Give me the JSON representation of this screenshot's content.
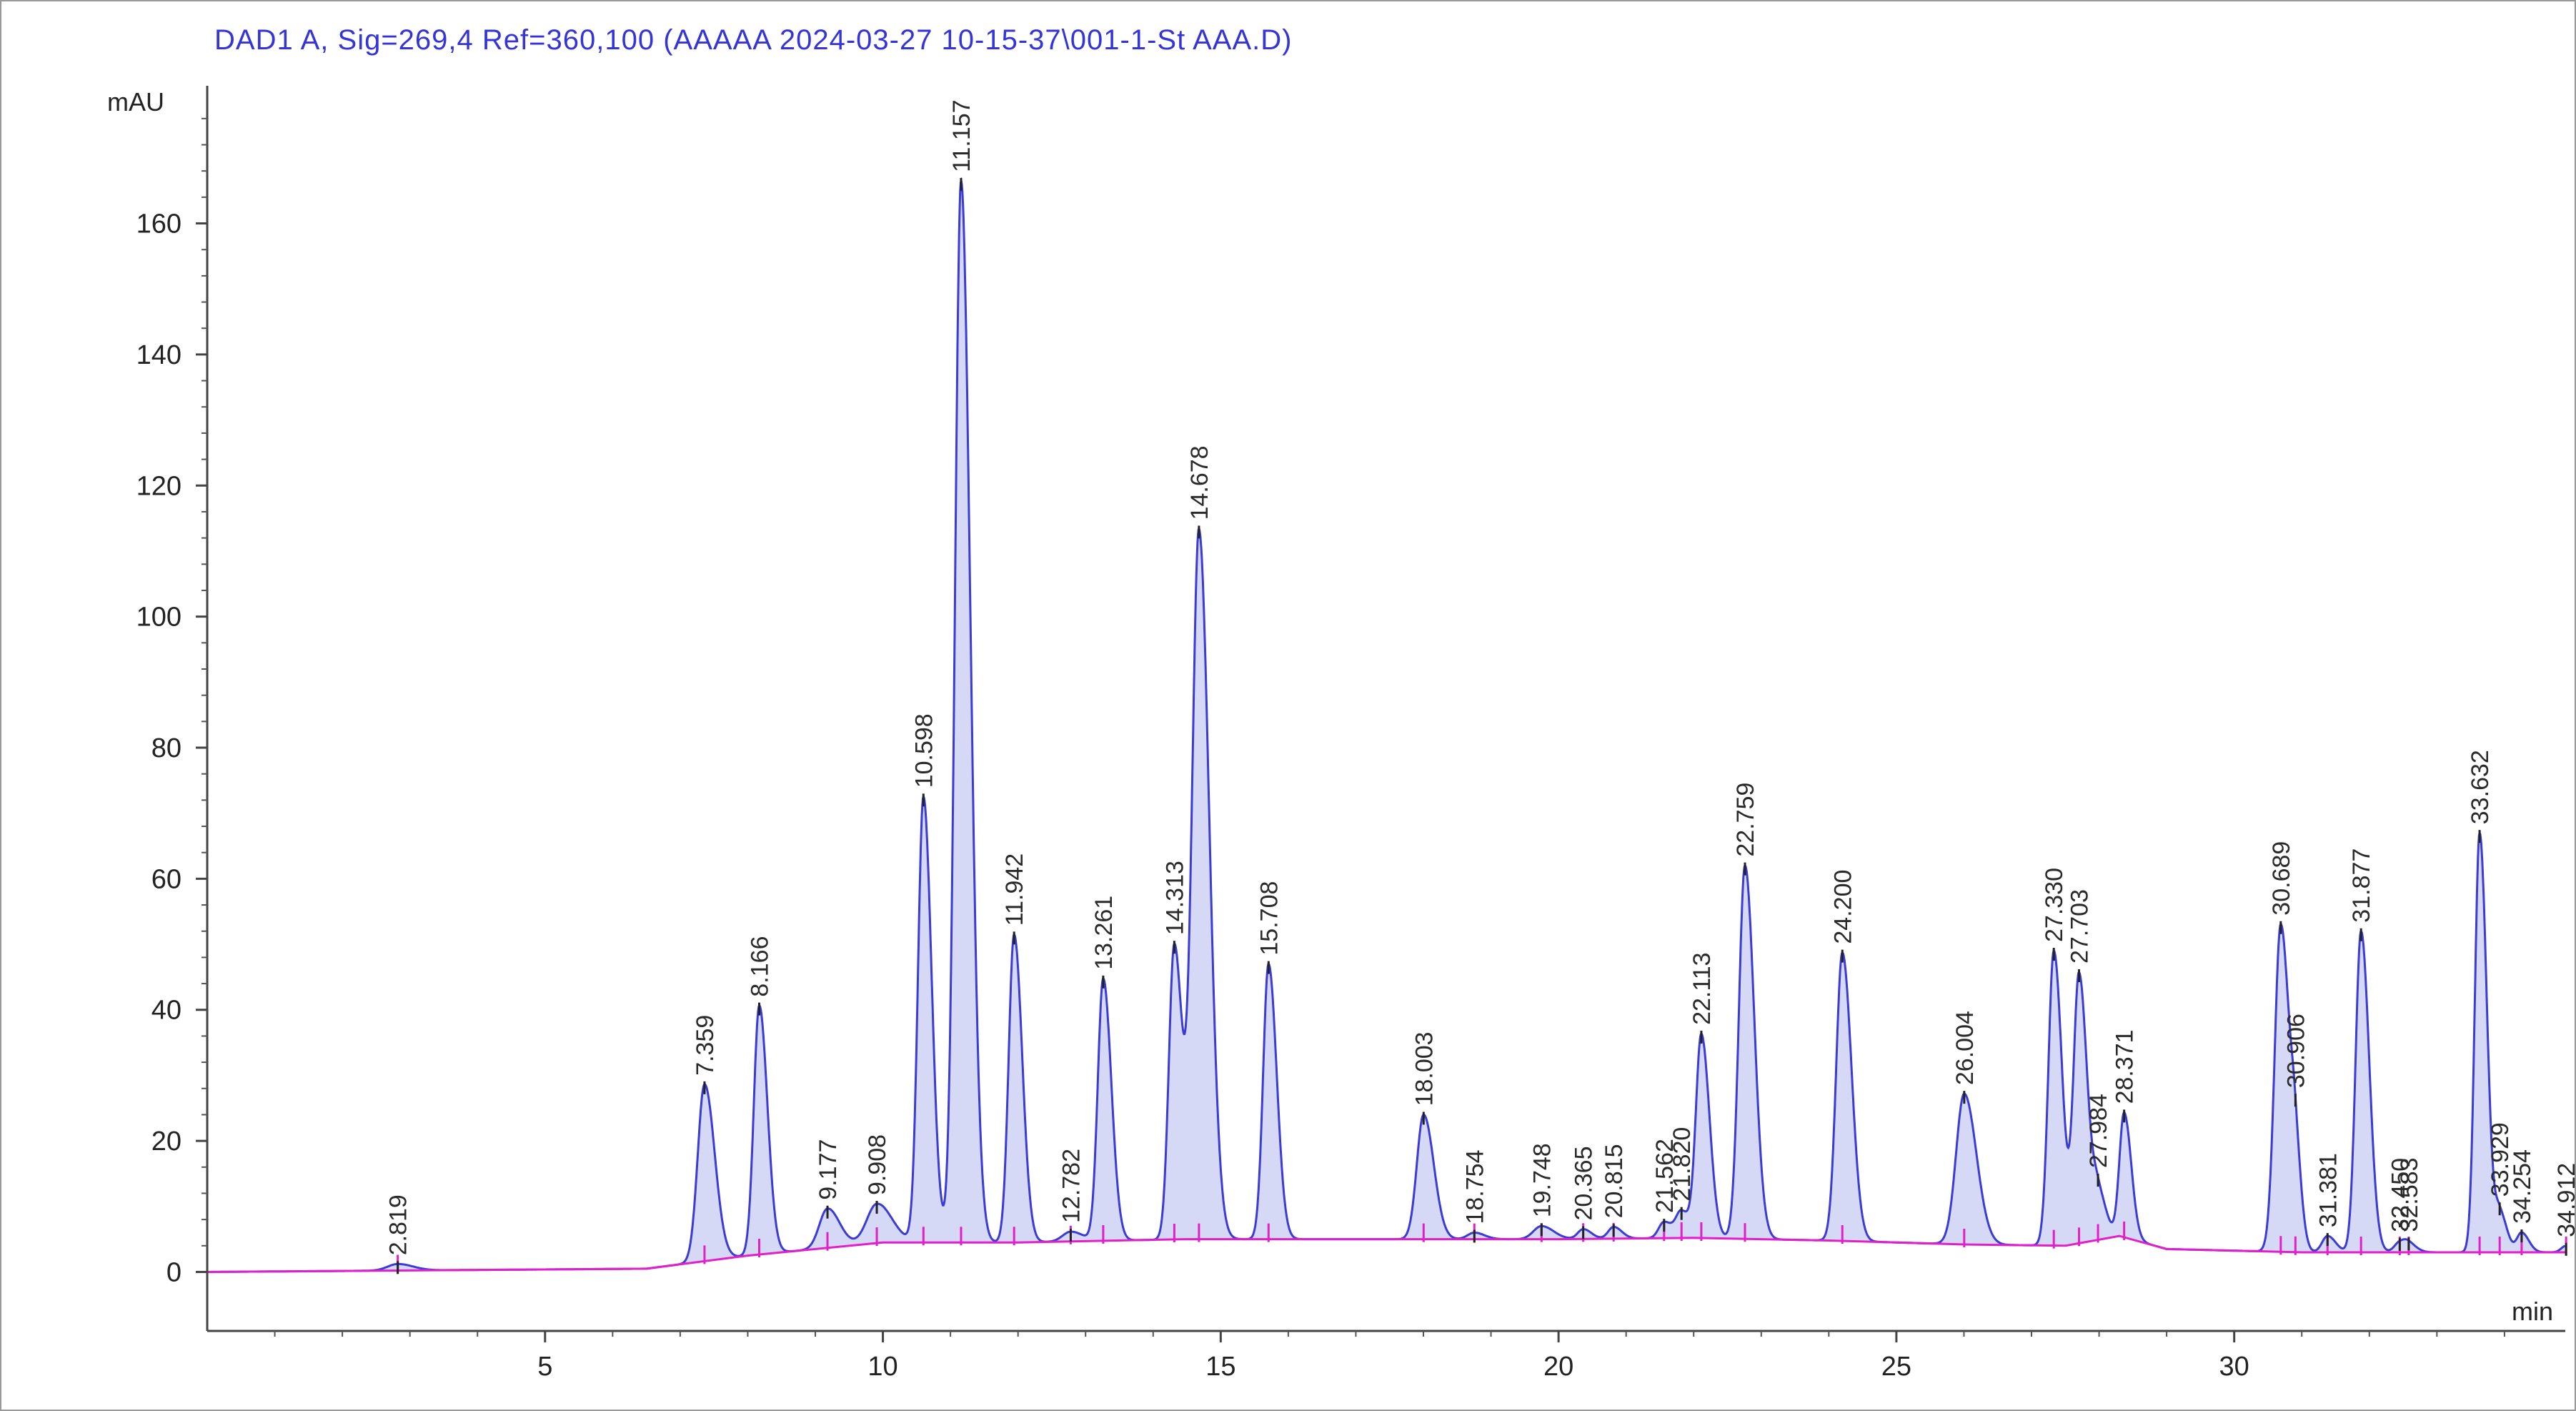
{
  "title": "DAD1 A, Sig=269,4 Ref=360,100 (AAAAA 2024-03-27 10-15-37\\001-1-St AAA.D)",
  "chart_data": {
    "type": "line",
    "ylabel": "mAU",
    "xlabel": "min",
    "xlim": [
      0,
      34.9
    ],
    "ylim": [
      -9,
      181
    ],
    "x_ticks": [
      5,
      10,
      15,
      20,
      25,
      30
    ],
    "y_ticks": [
      0,
      20,
      40,
      60,
      80,
      100,
      120,
      140,
      160
    ],
    "signal_color": "#3b3bd6",
    "fill_color": "#cfd2f4",
    "baseline_color": "#e020c8",
    "peaks": [
      {
        "rt": "2.819",
        "x": 2.82,
        "h": 1.0,
        "w": 0.15
      },
      {
        "rt": "7.359",
        "x": 7.36,
        "h": 27,
        "w": 0.1
      },
      {
        "rt": "8.166",
        "x": 8.17,
        "h": 38,
        "w": 0.08
      },
      {
        "rt": "9.177",
        "x": 9.18,
        "h": 6,
        "w": 0.12
      },
      {
        "rt": "9.908",
        "x": 9.91,
        "h": 6,
        "w": 0.15
      },
      {
        "rt": "10.598",
        "x": 10.6,
        "h": 68,
        "w": 0.08
      },
      {
        "rt": "11.157",
        "x": 11.157,
        "h": 162,
        "w": 0.09
      },
      {
        "rt": "11.942",
        "x": 11.942,
        "h": 47,
        "w": 0.08
      },
      {
        "rt": "12.782",
        "x": 12.78,
        "h": 1.5,
        "w": 0.12
      },
      {
        "rt": "13.261",
        "x": 13.261,
        "h": 40,
        "w": 0.08
      },
      {
        "rt": "14.313",
        "x": 14.313,
        "h": 45,
        "w": 0.08
      },
      {
        "rt": "14.678",
        "x": 14.678,
        "h": 108,
        "w": 0.1
      },
      {
        "rt": "15.708",
        "x": 15.708,
        "h": 42,
        "w": 0.08
      },
      {
        "rt": "18.003",
        "x": 18.003,
        "h": 19,
        "w": 0.1
      },
      {
        "rt": "18.754",
        "x": 18.754,
        "h": 1.0,
        "w": 0.1
      },
      {
        "rt": "19.748",
        "x": 19.748,
        "h": 2.0,
        "w": 0.12
      },
      {
        "rt": "20.365",
        "x": 20.365,
        "h": 1.5,
        "w": 0.08
      },
      {
        "rt": "20.815",
        "x": 20.815,
        "h": 1.8,
        "w": 0.08
      },
      {
        "rt": "21.562",
        "x": 21.562,
        "h": 2.5,
        "w": 0.08
      },
      {
        "rt": "21.820",
        "x": 21.82,
        "h": 4,
        "w": 0.08
      },
      {
        "rt": "22.113",
        "x": 22.113,
        "h": 31,
        "w": 0.08
      },
      {
        "rt": "22.759",
        "x": 22.759,
        "h": 57,
        "w": 0.09
      },
      {
        "rt": "24.200",
        "x": 24.2,
        "h": 44,
        "w": 0.09
      },
      {
        "rt": "26.004",
        "x": 26.004,
        "h": 23,
        "w": 0.12
      },
      {
        "rt": "27.330",
        "x": 27.33,
        "h": 45,
        "w": 0.08
      },
      {
        "rt": "27.703",
        "x": 27.703,
        "h": 41,
        "w": 0.08
      },
      {
        "rt": "27.984",
        "x": 27.984,
        "h": 7,
        "w": 0.08
      },
      {
        "rt": "28.371",
        "x": 28.371,
        "h": 19,
        "w": 0.07
      },
      {
        "rt": "30.689",
        "x": 30.689,
        "h": 50,
        "w": 0.09
      },
      {
        "rt": "30.906",
        "x": 30.906,
        "h": 10,
        "w": 0.06
      },
      {
        "rt": "31.381",
        "x": 31.381,
        "h": 2.5,
        "w": 0.08
      },
      {
        "rt": "31.877",
        "x": 31.877,
        "h": 49,
        "w": 0.08
      },
      {
        "rt": "32.450",
        "x": 32.45,
        "h": 1.5,
        "w": 0.08
      },
      {
        "rt": "32.583",
        "x": 32.583,
        "h": 1.0,
        "w": 0.08
      },
      {
        "rt": "33.632",
        "x": 33.632,
        "h": 64,
        "w": 0.07
      },
      {
        "rt": "33.929",
        "x": 33.929,
        "h": 6,
        "w": 0.07
      },
      {
        "rt": "34.254",
        "x": 34.254,
        "h": 3,
        "w": 0.07
      },
      {
        "rt": "34.912",
        "x": 34.912,
        "h": 1.0,
        "w": 0.07
      }
    ],
    "baseline": [
      [
        0,
        0
      ],
      [
        6.5,
        0.5
      ],
      [
        8.0,
        2.5
      ],
      [
        10.0,
        4.5
      ],
      [
        12.0,
        4.5
      ],
      [
        14.5,
        5.0
      ],
      [
        16.0,
        5.0
      ],
      [
        18.0,
        5.0
      ],
      [
        20.0,
        5.0
      ],
      [
        22.0,
        5.2
      ],
      [
        24.0,
        4.8
      ],
      [
        26.0,
        4.2
      ],
      [
        27.5,
        4.0
      ],
      [
        28.3,
        5.5
      ],
      [
        29.0,
        3.5
      ],
      [
        31.0,
        3.0
      ],
      [
        34.9,
        3.0
      ]
    ]
  }
}
